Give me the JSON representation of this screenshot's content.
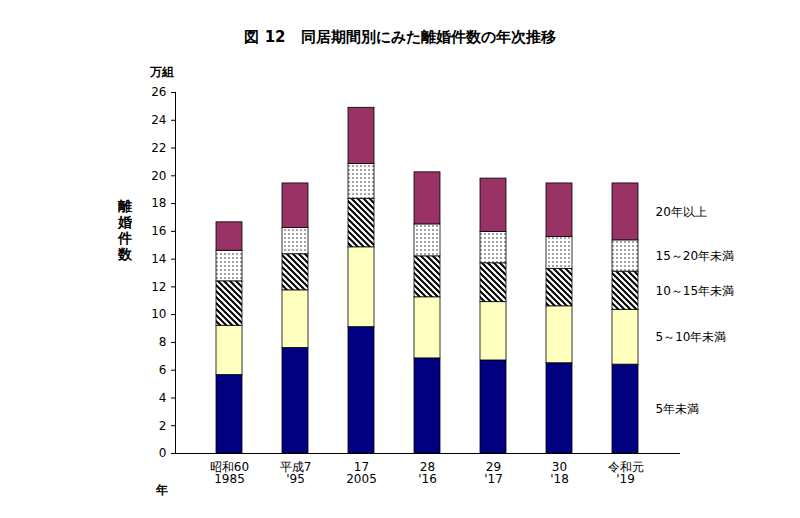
{
  "chart_data": {
    "type": "bar",
    "title": "図 12　同居期間別にみた離婚件数の年次推移",
    "y_label": "離婚件数",
    "y_unit": "万組",
    "x_label": "年",
    "categories": [
      "昭和60\n1985",
      "平成7\n'95",
      "17\n2005",
      "28\n'16",
      "29\n'17",
      "30\n'18",
      "令和元\n'19"
    ],
    "series": [
      {
        "name": "5年未満",
        "color": "#000080",
        "values": [
          5.65,
          7.6,
          9.1,
          6.85,
          6.7,
          6.5,
          6.4
        ]
      },
      {
        "name": "5～10年未満",
        "color": "#ffffc0",
        "values": [
          3.55,
          4.15,
          5.75,
          4.4,
          4.2,
          4.1,
          3.95
        ]
      },
      {
        "name": "10～15年未満",
        "color": "#000000",
        "values": [
          3.2,
          2.6,
          3.5,
          2.95,
          2.8,
          2.7,
          2.75
        ]
      },
      {
        "name": "15～20年未満",
        "color": "#000000",
        "values": [
          2.2,
          1.9,
          2.5,
          2.3,
          2.25,
          2.3,
          2.25
        ]
      },
      {
        "name": "20年以上",
        "color": "#993366",
        "values": [
          2.05,
          3.2,
          4.05,
          3.75,
          3.85,
          3.85,
          4.1
        ]
      }
    ],
    "ylim": [
      0,
      26
    ],
    "yticks": [
      0,
      2,
      4,
      6,
      8,
      10,
      12,
      14,
      16,
      18,
      20,
      22,
      24,
      26
    ],
    "stacked": true,
    "grid": false,
    "legend": "right",
    "data_labels": false
  }
}
